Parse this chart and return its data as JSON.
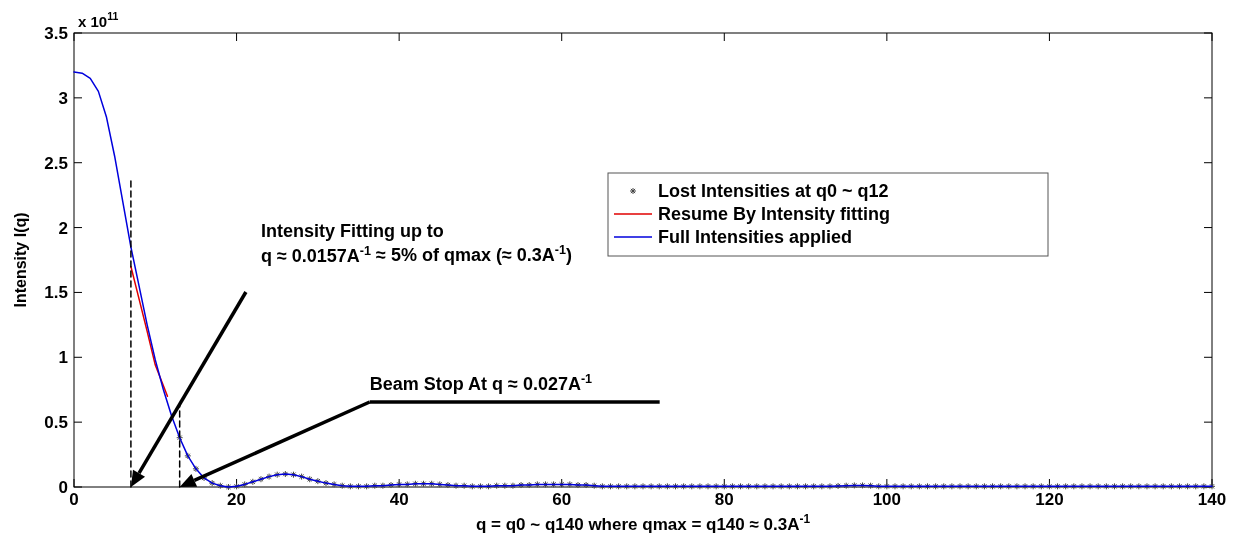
{
  "chart_data": {
    "type": "line",
    "xlabel": "q = q0 ~ q140 where qmax = q140 ≈ 0.3A$^{-1}$",
    "ylabel": "Intensity I(q)",
    "xlim": [
      0,
      140
    ],
    "xticks": [
      0,
      20,
      40,
      60,
      80,
      100,
      120,
      140
    ],
    "ylim": [
      0,
      3.5
    ],
    "yticks": [
      0,
      0.5,
      1,
      1.5,
      2,
      2.5,
      3,
      3.5
    ],
    "grid": false,
    "legend": "right",
    "annotations": [
      "x 10$^{11}$",
      "Intensity Fitting up to\nq ≈ 0.0157A$^{-1}$ ≈ 5% of qmax (≈ 0.3A$^{-1}$)",
      "Beam Stop At q ≈ 0.027A$^{-1}$"
    ],
    "series": [
      {
        "name": "Lost Intensities at q0 ~ q12",
        "type": "scatter",
        "marker": "cross",
        "color": "#444444",
        "x": [
          13,
          14,
          15,
          16,
          17,
          18,
          19,
          20,
          21,
          22,
          23,
          24,
          25,
          26,
          27,
          28,
          29,
          30,
          31,
          32,
          33,
          34,
          35,
          36,
          37,
          38,
          39,
          40,
          41,
          42,
          43,
          44,
          45,
          46,
          47,
          48,
          49,
          50,
          51,
          52,
          53,
          54,
          55,
          56,
          57,
          58,
          59,
          60,
          61,
          62,
          63,
          64,
          65,
          66,
          67,
          68,
          69,
          70,
          71,
          72,
          73,
          74,
          75,
          76,
          77,
          78,
          79,
          80,
          81,
          82,
          83,
          84,
          85,
          86,
          87,
          88,
          89,
          90,
          91,
          92,
          93,
          94,
          95,
          96,
          97,
          98,
          99,
          100,
          101,
          102,
          103,
          104,
          105,
          106,
          107,
          108,
          109,
          110,
          111,
          112,
          113,
          114,
          115,
          116,
          117,
          118,
          119,
          120,
          121,
          122,
          123,
          124,
          125,
          126,
          127,
          128,
          129,
          130,
          131,
          132,
          133,
          134,
          135,
          136,
          137,
          138,
          139,
          140
        ],
        "values": [
          0.38,
          0.24,
          0.14,
          0.07,
          0.03,
          0.01,
          0,
          0.005,
          0.02,
          0.04,
          0.06,
          0.08,
          0.095,
          0.1,
          0.095,
          0.08,
          0.06,
          0.045,
          0.03,
          0.02,
          0.01,
          0.005,
          0.005,
          0.005,
          0.01,
          0.01,
          0.015,
          0.02,
          0.02,
          0.025,
          0.025,
          0.025,
          0.02,
          0.015,
          0.01,
          0.01,
          0.005,
          0.005,
          0.005,
          0.01,
          0.01,
          0.01,
          0.015,
          0.015,
          0.02,
          0.02,
          0.02,
          0.02,
          0.02,
          0.015,
          0.015,
          0.01,
          0.005,
          0.005,
          0.005,
          0.005,
          0.005,
          0.005,
          0.005,
          0.005,
          0.005,
          0.005,
          0.005,
          0.005,
          0.005,
          0.005,
          0.005,
          0.005,
          0.005,
          0.005,
          0.005,
          0.005,
          0.005,
          0.005,
          0.005,
          0.005,
          0.005,
          0.005,
          0.005,
          0.005,
          0.005,
          0.008,
          0.01,
          0.012,
          0.012,
          0.01,
          0.005,
          0.005,
          0.005,
          0.005,
          0.005,
          0.005,
          0.005,
          0.005,
          0.005,
          0.005,
          0.005,
          0.005,
          0.005,
          0.005,
          0.005,
          0.005,
          0.005,
          0.005,
          0.005,
          0.005,
          0.005,
          0.005,
          0.005,
          0.005,
          0.005,
          0.005,
          0.005,
          0.005,
          0.005,
          0.005,
          0.005,
          0.005,
          0.005,
          0.005,
          0.005,
          0.005,
          0.005,
          0.005,
          0.005,
          0.005,
          0.005,
          0.005
        ]
      },
      {
        "name": "Resume By Intensity fitting",
        "type": "line",
        "color": "#e00000",
        "x": [
          7,
          8,
          9,
          10,
          11,
          11.5
        ],
        "values": [
          1.7,
          1.45,
          1.2,
          0.94,
          0.78,
          0.7
        ]
      },
      {
        "name": "Full Intensities applied",
        "type": "line",
        "color": "#0000dd",
        "x": [
          0,
          1,
          2,
          3,
          4,
          5,
          6,
          7,
          8,
          9,
          10,
          11,
          12,
          13,
          14,
          15,
          16,
          17,
          18,
          19,
          20,
          21,
          22,
          23,
          24,
          25,
          26,
          27,
          28,
          29,
          30,
          31,
          32,
          33,
          34,
          35,
          36,
          37,
          38,
          39,
          40,
          41,
          42,
          43,
          44,
          45,
          46,
          47,
          48,
          49,
          50,
          51,
          52,
          53,
          54,
          55,
          56,
          57,
          58,
          59,
          60,
          61,
          62,
          63,
          64,
          65,
          66,
          67,
          68,
          69,
          70,
          71,
          72,
          73,
          74,
          75,
          76,
          77,
          78,
          79,
          80,
          81,
          82,
          83,
          84,
          85,
          86,
          87,
          88,
          89,
          90,
          91,
          92,
          93,
          94,
          95,
          96,
          97,
          98,
          99,
          100,
          101,
          102,
          103,
          104,
          105,
          106,
          107,
          108,
          109,
          110,
          111,
          112,
          113,
          114,
          115,
          116,
          117,
          118,
          119,
          120,
          121,
          122,
          123,
          124,
          125,
          126,
          127,
          128,
          129,
          130,
          131,
          132,
          133,
          134,
          135,
          136,
          137,
          138,
          139,
          140
        ],
        "values": [
          3.2,
          3.19,
          3.15,
          3.05,
          2.85,
          2.55,
          2.2,
          1.85,
          1.55,
          1.25,
          0.98,
          0.75,
          0.55,
          0.38,
          0.24,
          0.14,
          0.07,
          0.03,
          0.01,
          0,
          0.005,
          0.02,
          0.04,
          0.06,
          0.08,
          0.095,
          0.1,
          0.095,
          0.08,
          0.06,
          0.045,
          0.03,
          0.02,
          0.01,
          0.005,
          0.005,
          0.005,
          0.01,
          0.01,
          0.015,
          0.02,
          0.02,
          0.025,
          0.025,
          0.025,
          0.02,
          0.015,
          0.01,
          0.01,
          0.005,
          0.005,
          0.005,
          0.01,
          0.01,
          0.01,
          0.015,
          0.015,
          0.02,
          0.02,
          0.02,
          0.02,
          0.02,
          0.015,
          0.015,
          0.01,
          0.005,
          0.005,
          0.005,
          0.005,
          0.005,
          0.005,
          0.005,
          0.005,
          0.005,
          0.005,
          0.005,
          0.005,
          0.005,
          0.005,
          0.005,
          0.005,
          0.005,
          0.005,
          0.005,
          0.005,
          0.005,
          0.005,
          0.005,
          0.005,
          0.005,
          0.005,
          0.005,
          0.005,
          0.005,
          0.008,
          0.01,
          0.012,
          0.012,
          0.01,
          0.005,
          0.005,
          0.005,
          0.005,
          0.005,
          0.005,
          0.005,
          0.005,
          0.005,
          0.005,
          0.005,
          0.005,
          0.005,
          0.005,
          0.005,
          0.005,
          0.005,
          0.005,
          0.005,
          0.005,
          0.005,
          0.005,
          0.005,
          0.005,
          0.005,
          0.005,
          0.005,
          0.005,
          0.005,
          0.005,
          0.005,
          0.005,
          0.005,
          0.005,
          0.005,
          0.005,
          0.005,
          0.005,
          0.005,
          0.005,
          0.005,
          0.005
        ]
      },
      {
        "line_style": "dashed",
        "color": "#000000",
        "x": [
          7,
          7
        ],
        "values": [
          0,
          2.37
        ]
      },
      {
        "line_style": "dashed",
        "color": "#000000",
        "x": [
          13,
          13
        ],
        "values": [
          0,
          0.65
        ]
      }
    ]
  }
}
